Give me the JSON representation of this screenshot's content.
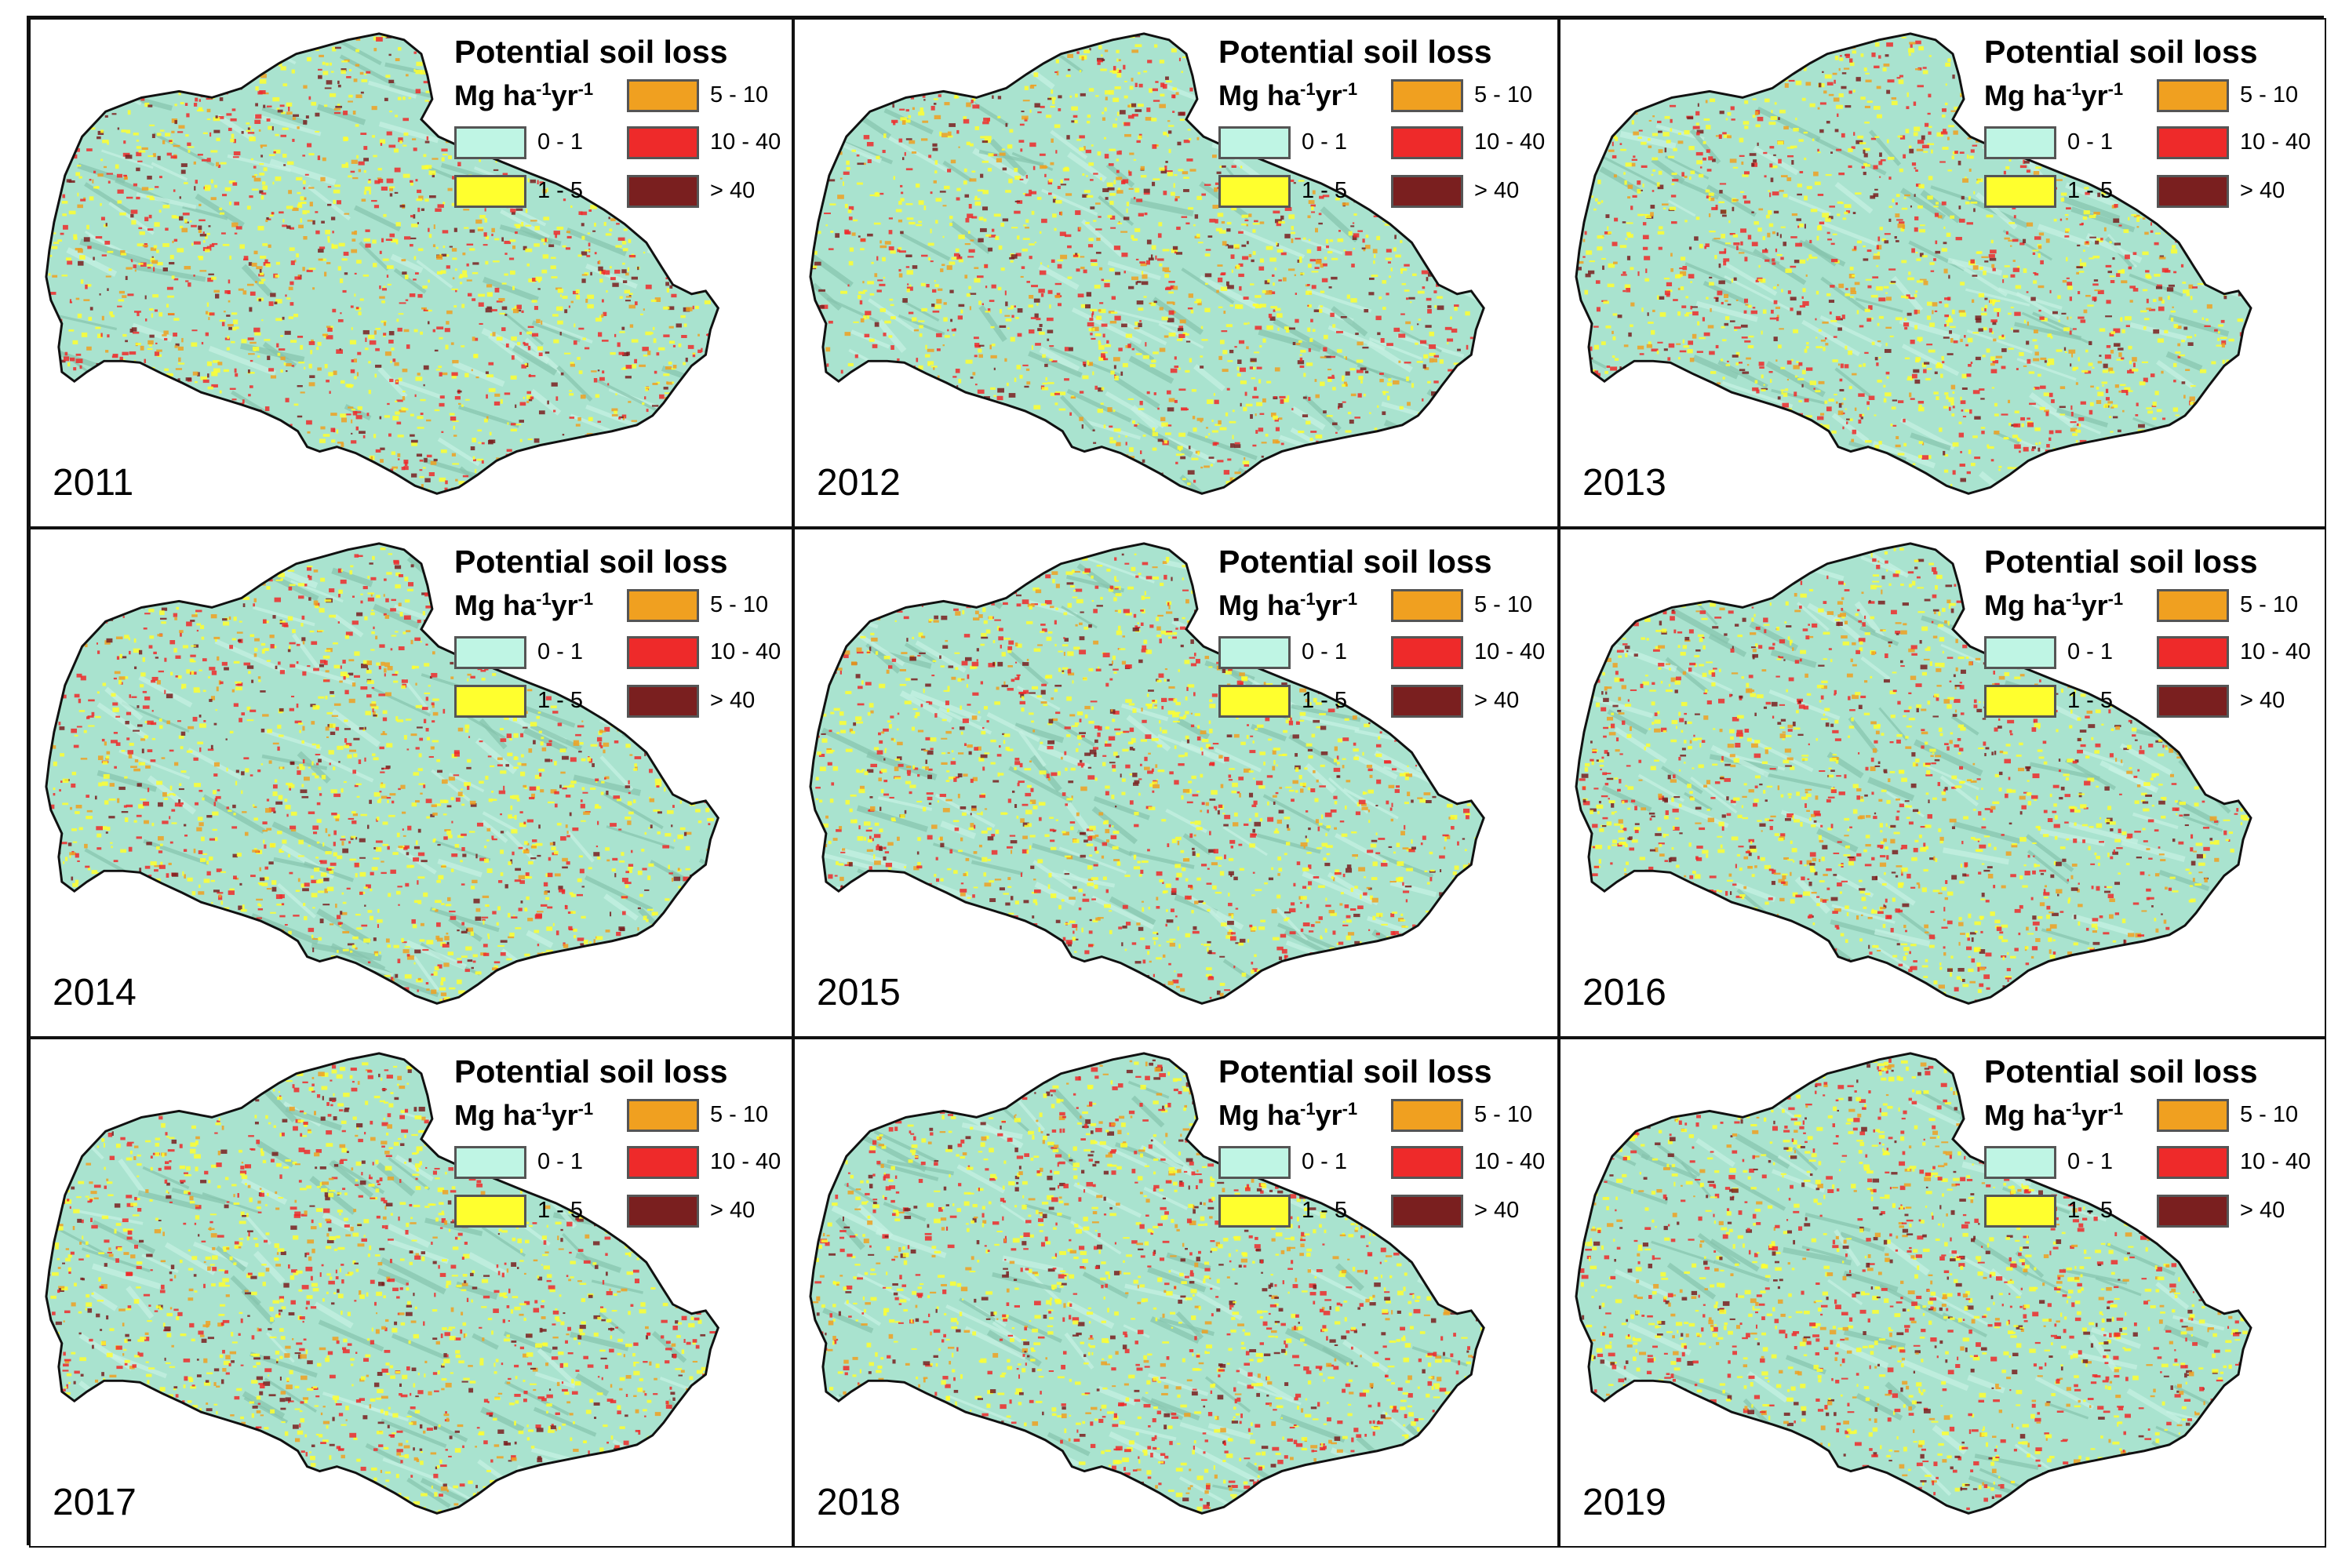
{
  "legend": {
    "title": "Potential soil loss",
    "unit_base": "Mg ha",
    "unit_exp1": "-1",
    "unit_mid": "yr",
    "unit_exp2": "-1",
    "classes": [
      {
        "label": "0 - 1",
        "color": "#bff5e4"
      },
      {
        "label": "1 - 5",
        "color": "#ffff2e"
      },
      {
        "label": "5 - 10",
        "color": "#f0a020"
      },
      {
        "label": "10 - 40",
        "color": "#ee2a2a"
      },
      {
        "label": "> 40",
        "color": "#7a1f1f"
      }
    ]
  },
  "panels": [
    {
      "year": "2011"
    },
    {
      "year": "2012"
    },
    {
      "year": "2013"
    },
    {
      "year": "2014"
    },
    {
      "year": "2015"
    },
    {
      "year": "2016"
    },
    {
      "year": "2017"
    },
    {
      "year": "2018"
    },
    {
      "year": "2019"
    }
  ],
  "colors": {
    "land": "#a9e3cf",
    "land_light": "#c8f2e4",
    "land_shade": "#86c4ad",
    "outline": "#111111"
  }
}
